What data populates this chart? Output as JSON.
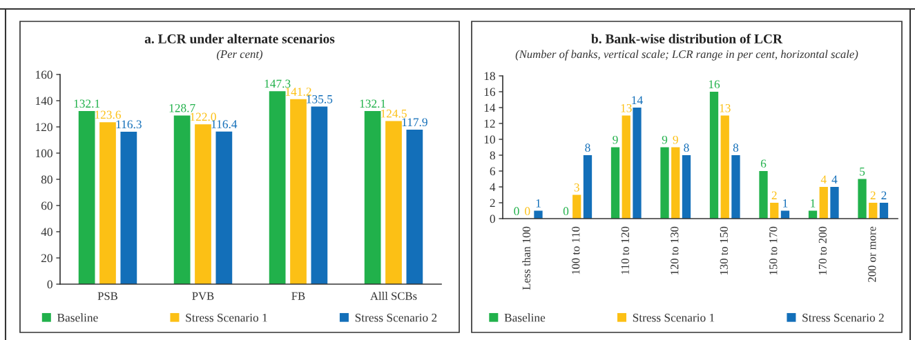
{
  "chart_data": [
    {
      "type": "bar",
      "title": "a. LCR under alternate scenarios",
      "subtitle": "(Per cent)",
      "categories": [
        "PSB",
        "PVB",
        "FB",
        "Alll SCBs"
      ],
      "series": [
        {
          "name": "Baseline",
          "color": "#21b14b",
          "values": [
            132.1,
            128.7,
            147.3,
            132.1
          ],
          "value_labels": [
            "132.1",
            "128.7",
            "147.3",
            "132.1"
          ]
        },
        {
          "name": "Stress Scenario 1",
          "color": "#fcc015",
          "values": [
            123.6,
            122.0,
            141.2,
            124.5
          ],
          "value_labels": [
            "123.6",
            "122.0",
            "141.2",
            "124.5"
          ]
        },
        {
          "name": "Stress Scenario 2",
          "color": "#136fb9",
          "values": [
            116.3,
            116.4,
            135.5,
            117.9
          ],
          "value_labels": [
            "116.3",
            "116.4",
            "135.5",
            "117.9"
          ]
        }
      ],
      "ylim": [
        0,
        160
      ],
      "yticks": [
        0,
        20,
        40,
        60,
        80,
        100,
        120,
        140,
        160
      ],
      "legend": "bottom"
    },
    {
      "type": "bar",
      "title": "b. Bank-wise distribution of LCR",
      "subtitle": "(Number of banks, vertical scale; LCR range in per cent, horizontal scale)",
      "categories": [
        "Less than 100",
        "100 to 110",
        "110 to 120",
        "120 to 130",
        "130 to 150",
        "150 to 170",
        "170 to 200",
        "200 or more"
      ],
      "series": [
        {
          "name": "Baseline",
          "color": "#21b14b",
          "values": [
            0,
            0,
            9,
            9,
            16,
            6,
            1,
            5
          ]
        },
        {
          "name": "Stress Scenario 1",
          "color": "#fcc015",
          "values": [
            0,
            3,
            13,
            9,
            13,
            2,
            4,
            2
          ]
        },
        {
          "name": "Stress Scenario 2",
          "color": "#136fb9",
          "values": [
            1,
            8,
            14,
            8,
            8,
            1,
            4,
            2
          ]
        }
      ],
      "ylim": [
        0,
        18
      ],
      "yticks": [
        0,
        2,
        4,
        6,
        8,
        10,
        12,
        14,
        16,
        18
      ],
      "data_labels": true,
      "legend": "bottom"
    }
  ]
}
